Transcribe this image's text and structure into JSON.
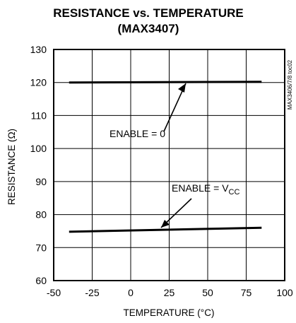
{
  "chart_data": {
    "type": "line",
    "title": "RESISTANCE vs. TEMPERATURE",
    "subtitle": "(MAX3407)",
    "xlabel": "TEMPERATURE (°C)",
    "ylabel": "RESISTANCE (Ω)",
    "xlim": [
      -50,
      100
    ],
    "ylim": [
      60,
      130
    ],
    "xticks": [
      "-50",
      "-25",
      "0",
      "25",
      "50",
      "75",
      "100"
    ],
    "yticks": [
      "60",
      "70",
      "80",
      "90",
      "100",
      "110",
      "120",
      "130"
    ],
    "grid": true,
    "series": [
      {
        "label": "ENABLE = 0",
        "x": [
          -40,
          85
        ],
        "y": [
          120.0,
          120.2
        ]
      },
      {
        "label_main": "ENABLE = V",
        "label_sub": "CC",
        "x": [
          -40,
          85
        ],
        "y": [
          74.8,
          76.0
        ]
      }
    ],
    "side_code": "MAX3406/7/8 toc02"
  }
}
